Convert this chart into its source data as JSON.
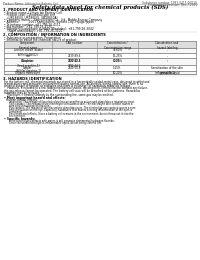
{
  "bg_color": "#ffffff",
  "header_left": "Product Name: Lithium Ion Battery Cell",
  "header_right_line1": "Substance number: 1993-0415-00010",
  "header_right_line2": "Established / Revision: Dec.7.2010",
  "title": "Safety data sheet for chemical products (SDS)",
  "section1_title": "1. PRODUCT AND COMPANY IDENTIFICATION",
  "section1_lines": [
    "• Product name: Lithium Ion Battery Cell",
    "• Product code: Cylindrical-type cell",
    "    (UR18650J, UR18650L, UR18650A)",
    "• Company name:    Sanyo Electric Co., Ltd., Mobile Energy Company",
    "• Address:           2001 Kamiyashiro, Sumoto City, Hyogo, Japan",
    "• Telephone number: +81-799-26-4111",
    "• Fax number:  +81-799-26-4125",
    "• Emergency telephone number (Weekday): +81-799-26-3042",
    "    (Night and holiday): +81-799-26-3101"
  ],
  "section2_title": "2. COMPOSITION / INFORMATION ON INGREDIENTS",
  "section2_intro": "• Substance or preparation: Preparation",
  "section2_sub": "• Information about the chemical nature of product:",
  "table_rows": [
    [
      "Lithium cobalt (oxide)\n(LiMn/Co/Ni)O2)",
      "-",
      "30-60%",
      "-"
    ],
    [
      "Iron\nAluminum",
      "7439-89-6\n7429-90-5",
      "15-25%\n2-6%",
      "-\n-"
    ],
    [
      "Graphite\n(fired graphite-1)\n(AI film graphite-1)",
      "7782-42-5\n7782-44-2",
      "10-25%",
      "-"
    ],
    [
      "Copper",
      "7440-50-8",
      "5-15%",
      "Sensitization of the skin\ngroup No.2"
    ],
    [
      "Organic electrolyte",
      "-",
      "10-20%",
      "Inflammable liquid"
    ]
  ],
  "section3_title": "3. HAZARDS IDENTIFICATION",
  "section3_lines": [
    "For the battery cell, chemical materials are stored in a hermetically sealed metal case, designed to withstand",
    "temperatures and pressures encountered during normal use. As a result, during normal use, there is no",
    "physical danger of ignition or explosion and there is no danger of hazardous materials leakage.",
    "    However, if exposed to a fire, added mechanical shocks, decomposed, limited electric without any failure,",
    "the gas release cannot be operated. The battery cell case will be breached at fire-patterns. Hazardous",
    "materials may be released.",
    "    Moreover, if heated strongly by the surrounding fire, some gas may be emitted."
  ],
  "bullet1": "• Most important hazard and effects:",
  "human_label": "Human health effects:",
  "human_lines": [
    "    Inhalation: The release of the electrolyte has an anesthesia action and stimulates a respiratory tract.",
    "    Skin contact: The release of the electrolyte stimulates a skin. The electrolyte skin contact causes a",
    "    sore and stimulation on the skin.",
    "    Eye contact: The release of the electrolyte stimulates eyes. The electrolyte eye contact causes a sore",
    "    and stimulation on the eye. Especially, substance that causes a strong inflammation of the eyes is",
    "    contained.",
    "    Environmental effects: Since a battery cell remains in the environment, do not throw out it into the",
    "    environment."
  ],
  "specific_label": "• Specific hazards:",
  "specific_lines": [
    "    If the electrolyte contacts with water, it will generate detrimental hydrogen fluoride.",
    "    Since the used electrolyte is inflammable liquid, do not bring close to fire."
  ]
}
